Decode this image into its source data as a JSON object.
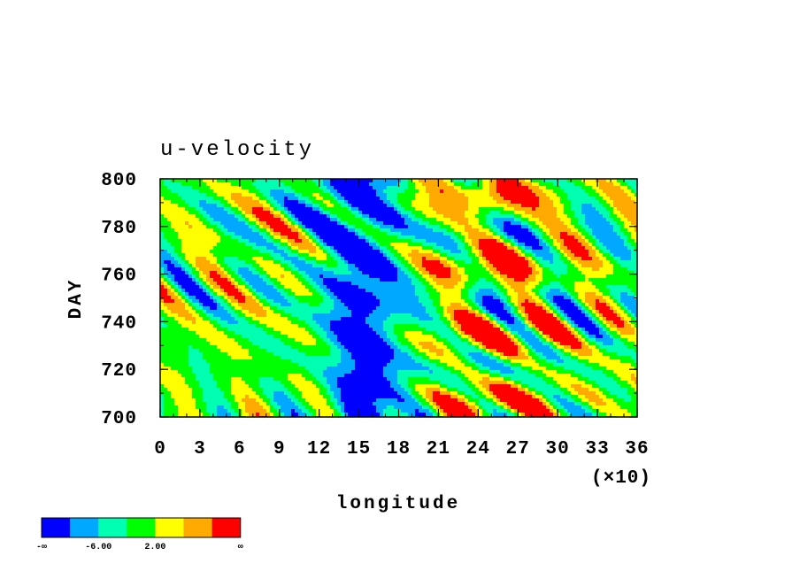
{
  "chart_data": {
    "type": "heatmap",
    "title": "u-velocity",
    "xlabel": "longitude",
    "ylabel": "DAY",
    "x_multiplier": "(×10)",
    "xlim": [
      0,
      36
    ],
    "ylim": [
      700,
      800
    ],
    "x_ticks": [
      "0",
      "3",
      "6",
      "9",
      "12",
      "15",
      "18",
      "21",
      "24",
      "27",
      "30",
      "33",
      "36"
    ],
    "y_ticks": [
      "700",
      "720",
      "740",
      "760",
      "780",
      "800"
    ],
    "colorbar": {
      "colors": [
        "#0000ff",
        "#00a8ff",
        "#00ffb0",
        "#00ff00",
        "#ffff00",
        "#ffaa00",
        "#ff0000"
      ],
      "labels": [
        "-∞",
        "-6.00",
        "2.00",
        "∞"
      ]
    }
  }
}
